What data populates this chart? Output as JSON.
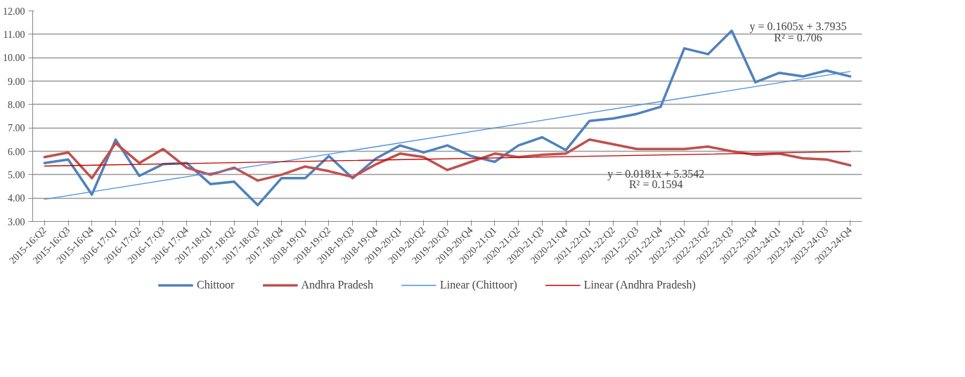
{
  "chart_data": {
    "type": "line",
    "categories": [
      "2015-16:Q2",
      "2015-16:Q3",
      "2015-16:Q4",
      "2016-17:Q1",
      "2016-17:Q2",
      "2016-17:Q3",
      "2016-17:Q4",
      "2017-18:Q1",
      "2017-18:Q2",
      "2017-18:Q3",
      "2017-18:Q4",
      "2018-19:Q1",
      "2018-19:Q2",
      "2018-19:Q3",
      "2018-19:Q4",
      "2019-20:Q1",
      "2019-20:Q2",
      "2019-20:Q3",
      "2019-20:Q4",
      "2020-21:Q1",
      "2020-21:Q2",
      "2020-21:Q3",
      "2020-21:Q4",
      "2021-22:Q1",
      "2021-22:Q2",
      "2021-22:Q3",
      "2021-22:Q4",
      "2022-23:Q1",
      "2022-23:Q2",
      "2022-23:Q3",
      "2022-23:Q4",
      "2023-24:Q1",
      "2023-24:Q2",
      "2023-24:Q3",
      "2023-24:Q4"
    ],
    "series": [
      {
        "name": "Chittoor",
        "color": "#4f81bd",
        "values": [
          5.5,
          5.65,
          4.15,
          6.5,
          4.95,
          5.45,
          5.5,
          4.6,
          4.7,
          3.7,
          4.85,
          4.85,
          5.8,
          4.85,
          5.7,
          6.25,
          5.95,
          6.25,
          5.8,
          5.55,
          6.25,
          6.6,
          6.05,
          7.3,
          7.4,
          7.6,
          7.9,
          10.4,
          10.15,
          11.15,
          8.95,
          9.35,
          9.2,
          9.45,
          9.2
        ]
      },
      {
        "name": "Andhra Pradesh",
        "color": "#c0504d",
        "values": [
          5.75,
          5.95,
          4.85,
          6.35,
          5.5,
          6.1,
          5.3,
          5.0,
          5.3,
          4.75,
          5.0,
          5.35,
          5.15,
          4.9,
          5.45,
          5.9,
          5.75,
          5.2,
          5.55,
          5.9,
          5.75,
          5.85,
          5.9,
          6.5,
          6.3,
          6.1,
          6.1,
          6.1,
          6.2,
          6.0,
          5.85,
          5.9,
          5.7,
          5.65,
          5.4
        ]
      },
      {
        "name": "Linear (Chittoor)",
        "color": "#4a90e2",
        "values": [
          3.95,
          null,
          null,
          null,
          null,
          null,
          null,
          null,
          null,
          null,
          null,
          null,
          null,
          null,
          null,
          null,
          null,
          null,
          null,
          null,
          null,
          null,
          null,
          null,
          null,
          null,
          null,
          null,
          null,
          null,
          null,
          null,
          null,
          null,
          9.41
        ]
      },
      {
        "name": "Linear (Andhra Pradesh)",
        "color": "#c00000",
        "values": [
          5.37,
          null,
          null,
          null,
          null,
          null,
          null,
          null,
          null,
          null,
          null,
          null,
          null,
          null,
          null,
          null,
          null,
          null,
          null,
          null,
          null,
          null,
          null,
          null,
          null,
          null,
          null,
          null,
          null,
          null,
          null,
          null,
          null,
          null,
          5.99
        ]
      }
    ],
    "annotations": [
      "y = 0.1605x + 3.7935",
      "R² = 0.706",
      "y = 0.0181x + 5.3542",
      "R² = 0.1594"
    ],
    "ylim": [
      3,
      12
    ],
    "yticks": [
      {
        "value": 3,
        "label": "3.00"
      },
      {
        "value": 4,
        "label": "4.00"
      },
      {
        "value": 5,
        "label": "5.00"
      },
      {
        "value": 6,
        "label": "6.00"
      },
      {
        "value": 7,
        "label": "7.00"
      },
      {
        "value": 8,
        "label": "8.00"
      },
      {
        "value": 9,
        "label": "9.00"
      },
      {
        "value": 10,
        "label": "10.00"
      },
      {
        "value": 11,
        "label": "11.00"
      },
      {
        "value": 12,
        "label": "12.00"
      }
    ],
    "grid": "y",
    "legend": "bottom",
    "line_style": "solid"
  }
}
